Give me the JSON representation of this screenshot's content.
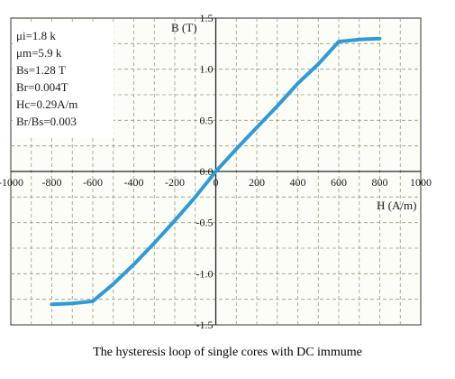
{
  "chart_data": {
    "type": "line",
    "xlabel": "H (A/m)",
    "ylabel": "B (T)",
    "xlim": [
      -1000,
      1000
    ],
    "ylim": [
      -1.5,
      1.5
    ],
    "xticks": [
      -1000,
      -800,
      -600,
      -400,
      -200,
      0,
      200,
      400,
      600,
      800,
      1000
    ],
    "xtick_labels": [
      "-1000",
      "-800",
      "-600",
      "-400",
      "-200",
      "0",
      "200",
      "400",
      "600",
      "800",
      "1000"
    ],
    "yticks": [
      -1.5,
      -1.0,
      -0.5,
      0.0,
      0.5,
      1.0,
      1.5
    ],
    "ytick_labels": [
      "-1.5",
      "-1.0",
      "-0.5",
      "0.0",
      "0.5",
      "1.0",
      "1.5"
    ],
    "grid": true,
    "line_color": "#2f9bd6",
    "series": [
      {
        "x": [
          -800,
          -700,
          -600,
          -500,
          -400,
          -300,
          -200,
          -100,
          0,
          100,
          200,
          300,
          400,
          500,
          600,
          700,
          800
        ],
        "y": [
          -1.3,
          -1.29,
          -1.27,
          -1.1,
          -0.91,
          -0.7,
          -0.48,
          -0.25,
          0.0,
          0.22,
          0.43,
          0.64,
          0.86,
          1.05,
          1.27,
          1.29,
          1.3
        ]
      }
    ],
    "annotations": [
      "μi=1.8 k",
      "μm=5.9 k",
      "Bs=1.28 T",
      "Br=0.004T",
      "Hc=0.29A/m",
      "Br/Bs=0.003"
    ]
  },
  "caption": "The hysteresis loop of single cores with DC immume"
}
